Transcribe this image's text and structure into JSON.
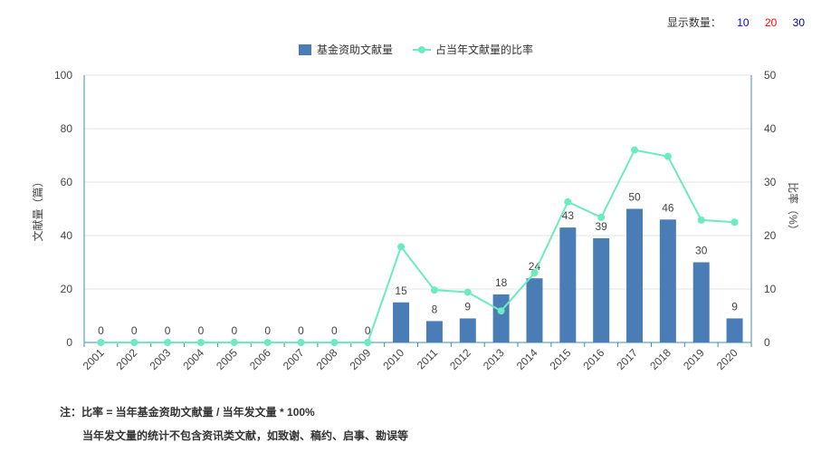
{
  "display_count": {
    "label": "显示数量：",
    "options": [
      {
        "value": "10",
        "color": "#0000ff"
      },
      {
        "value": "20",
        "color": "#ff0000"
      },
      {
        "value": "30",
        "color": "#0000aa"
      }
    ]
  },
  "chart_data": {
    "type": "bar",
    "categories": [
      "2001",
      "2002",
      "2003",
      "2004",
      "2005",
      "2006",
      "2007",
      "2008",
      "2009",
      "2010",
      "2011",
      "2012",
      "2013",
      "2014",
      "2015",
      "2016",
      "2017",
      "2018",
      "2019",
      "2020"
    ],
    "series": [
      {
        "name": "基金资助文献量",
        "type": "bar",
        "axis": "left",
        "color": "#4a7db5",
        "values": [
          0,
          0,
          0,
          0,
          0,
          0,
          0,
          0,
          0,
          15,
          8,
          9,
          18,
          24,
          43,
          39,
          50,
          46,
          30,
          9
        ]
      },
      {
        "name": "占当年文献量的比率",
        "type": "line",
        "axis": "right",
        "color": "#6ceac0",
        "values": [
          0,
          0,
          0,
          0,
          0,
          0,
          0,
          0,
          0,
          17.9,
          9.8,
          9.4,
          5.9,
          13.0,
          26.3,
          23.4,
          36.0,
          34.8,
          22.9,
          22.5
        ]
      }
    ],
    "ylabel": "文献量（篇）",
    "y2label": "比率（%）",
    "ylim": [
      0,
      100
    ],
    "y2lim": [
      0,
      50
    ],
    "yticks": [
      0,
      20,
      40,
      60,
      80,
      100
    ],
    "y2ticks": [
      0,
      10,
      20,
      30,
      40,
      50
    ],
    "legend_position": "top-center",
    "grid": true
  },
  "notes": {
    "line1": "注：比率 = 当年基金资助文献量 / 当年发文量 * 100%",
    "line2": "当年发文量的统计不包含资讯类文献，如致谢、稿约、启事、勘误等"
  }
}
